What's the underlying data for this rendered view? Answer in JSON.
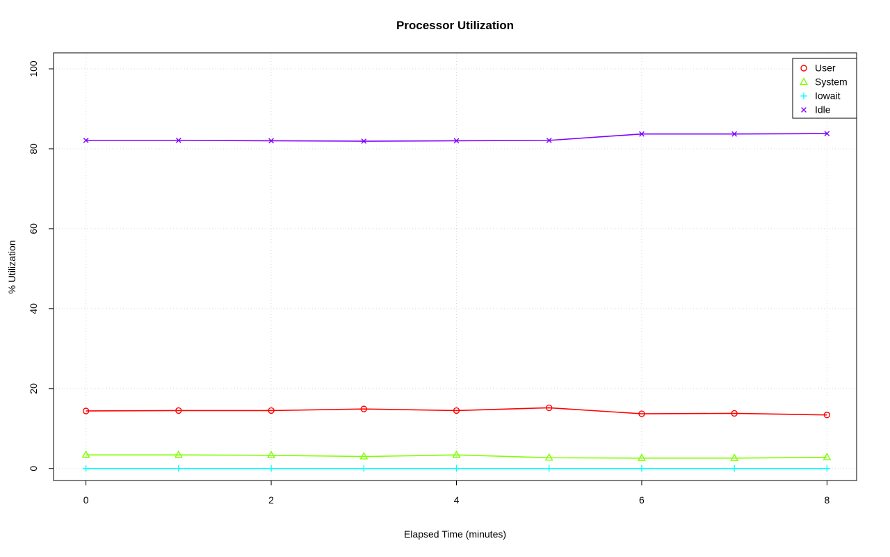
{
  "chart_data": {
    "type": "line",
    "title": "Processor Utilization",
    "xlabel": "Elapsed Time (minutes)",
    "ylabel": "% Utilization",
    "x": [
      0,
      1,
      2,
      3,
      4,
      5,
      6,
      7,
      8
    ],
    "series": [
      {
        "name": "User",
        "color": "#FF0000",
        "marker": "circle",
        "values": [
          14.4,
          14.5,
          14.5,
          14.9,
          14.5,
          15.2,
          13.7,
          13.8,
          13.4
        ]
      },
      {
        "name": "System",
        "color": "#80FF00",
        "marker": "triangle",
        "values": [
          3.4,
          3.4,
          3.3,
          3.0,
          3.4,
          2.7,
          2.6,
          2.6,
          2.8
        ]
      },
      {
        "name": "Iowait",
        "color": "#00FFFF",
        "marker": "plus",
        "values": [
          0,
          0,
          0,
          0,
          0,
          0,
          0,
          0,
          0
        ]
      },
      {
        "name": "Idle",
        "color": "#8000FF",
        "marker": "x",
        "values": [
          82.1,
          82.1,
          82.0,
          81.9,
          82.0,
          82.1,
          83.7,
          83.7,
          83.8
        ]
      }
    ],
    "x_ticks": [
      0,
      2,
      4,
      6,
      8
    ],
    "y_ticks": [
      0,
      20,
      40,
      60,
      80,
      100
    ],
    "xlim": [
      -0.35,
      8.32
    ],
    "ylim": [
      -3,
      104
    ],
    "grid": true,
    "grid_color": "#d9d9d9",
    "axis_color": "#000000",
    "legend_position": "top-right"
  }
}
